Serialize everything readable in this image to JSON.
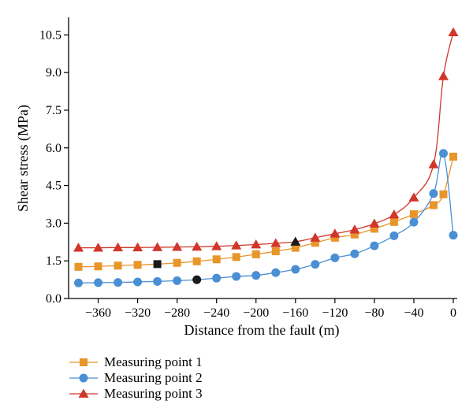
{
  "chart_data": {
    "type": "line",
    "title": "",
    "xlabel": "Distance from the fault (m)",
    "ylabel": "Shear stress (MPa)",
    "xlim": [
      -390,
      4
    ],
    "ylim": [
      0,
      11.2
    ],
    "xticks": [
      -360,
      -320,
      -280,
      -240,
      -200,
      -160,
      -120,
      -80,
      -40,
      0
    ],
    "xtick_labels": [
      "−360",
      "−320",
      "−280",
      "−240",
      "−200",
      "−160",
      "−120",
      "−80",
      "−40",
      "0"
    ],
    "yticks": [
      0,
      1.5,
      3.0,
      4.5,
      6.0,
      7.5,
      9.0,
      10.5
    ],
    "ytick_labels": [
      "0.0",
      "1.5",
      "3.0",
      "4.5",
      "6.0",
      "7.5",
      "9.0",
      "10.5"
    ],
    "grid": false,
    "legend_position": "below-left",
    "series": [
      {
        "name": "Measuring point 1",
        "color": "#E8952A",
        "marker": "square",
        "x": [
          -380,
          -360,
          -340,
          -320,
          -300,
          -280,
          -260,
          -240,
          -220,
          -200,
          -180,
          -160,
          -140,
          -120,
          -100,
          -80,
          -60,
          -40,
          -20,
          -10,
          0
        ],
        "y": [
          1.26,
          1.28,
          1.31,
          1.34,
          1.37,
          1.42,
          1.48,
          1.56,
          1.65,
          1.76,
          1.88,
          2.02,
          2.22,
          2.42,
          2.55,
          2.78,
          3.05,
          3.36,
          3.72,
          4.15,
          5.65
        ],
        "highlight_index": 4,
        "highlight_color": "#1a1a1a"
      },
      {
        "name": "Measuring point 2",
        "color": "#4A8FD4",
        "marker": "circle",
        "x": [
          -380,
          -360,
          -340,
          -320,
          -300,
          -280,
          -260,
          -240,
          -220,
          -200,
          -180,
          -160,
          -140,
          -120,
          -100,
          -80,
          -60,
          -40,
          -20,
          -10,
          0
        ],
        "y": [
          0.62,
          0.63,
          0.64,
          0.66,
          0.68,
          0.71,
          0.75,
          0.81,
          0.88,
          0.92,
          1.03,
          1.16,
          1.36,
          1.62,
          1.78,
          2.1,
          2.5,
          3.04,
          4.18,
          5.78,
          2.52
        ],
        "highlight_index": 6,
        "highlight_color": "#1a1a1a"
      },
      {
        "name": "Measuring point 3",
        "color": "#D0362A",
        "marker": "triangle",
        "x": [
          -380,
          -360,
          -340,
          -320,
          -300,
          -280,
          -260,
          -240,
          -220,
          -200,
          -180,
          -160,
          -140,
          -120,
          -100,
          -80,
          -60,
          -40,
          -20,
          -10,
          0
        ],
        "y": [
          2.02,
          2.02,
          2.03,
          2.03,
          2.04,
          2.05,
          2.06,
          2.08,
          2.11,
          2.15,
          2.2,
          2.26,
          2.42,
          2.58,
          2.74,
          2.98,
          3.34,
          4.02,
          5.34,
          8.85,
          10.6
        ],
        "highlight_index": 11,
        "highlight_color": "#1a1a1a"
      }
    ]
  }
}
